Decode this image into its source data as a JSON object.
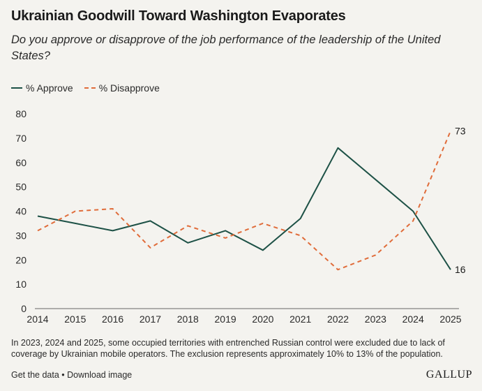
{
  "title": "Ukrainian Goodwill Toward Washington Evaporates",
  "subtitle": "Do you approve or disapprove of the job performance of the leadership of the United States?",
  "legend": {
    "approve": "% Approve",
    "disapprove": "% Disapprove"
  },
  "note": "In 2023, 2024 and 2025, some occupied territories with entrenched Russian control were excluded due to lack of coverage by Ukrainian mobile operators. The exclusion represents approximately 10% to 13% of the population.",
  "footer": {
    "get_data": "Get the data",
    "separator": " • ",
    "download": "Download image"
  },
  "logo": "GALLUP",
  "colors": {
    "approve": "#1d5146",
    "disapprove": "#e06c3a",
    "background": "#f4f3ef"
  },
  "chart_data": {
    "type": "line",
    "title": "Ukrainian Goodwill Toward Washington Evaporates",
    "x": [
      "2014",
      "2015",
      "2016",
      "2017",
      "2018",
      "2019",
      "2020",
      "2021",
      "2022",
      "2023",
      "2024",
      "2025"
    ],
    "y_ticks": [
      "0",
      "10",
      "20",
      "30",
      "40",
      "50",
      "60",
      "70",
      "80"
    ],
    "ylim": [
      0,
      80
    ],
    "grid": false,
    "legend_position": "top-left",
    "series": [
      {
        "name": "% Approve",
        "style": "solid",
        "values": [
          38,
          35,
          32,
          36,
          27,
          32,
          24,
          37,
          66,
          53,
          40,
          16
        ],
        "end_label": "16"
      },
      {
        "name": "% Disapprove",
        "style": "dashed",
        "values": [
          32,
          40,
          41,
          25,
          34,
          29,
          35,
          30,
          16,
          22,
          36,
          73
        ],
        "end_label": "73"
      }
    ]
  }
}
